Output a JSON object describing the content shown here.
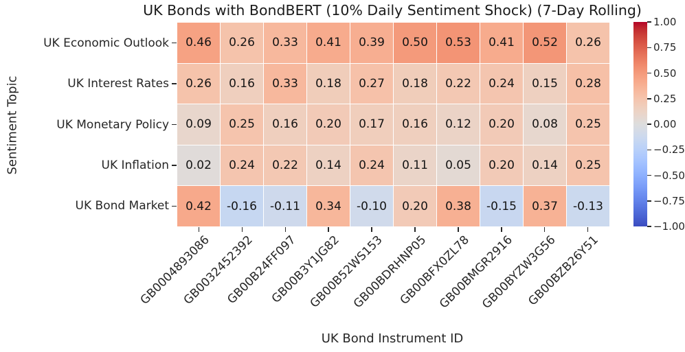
{
  "chart_data": {
    "type": "heatmap",
    "title": "UK Bonds with BondBERT (10% Daily Sentiment Shock) (7-Day Rolling)",
    "xlabel": "UK Bond Instrument ID",
    "ylabel": "Sentiment Topic",
    "rows": [
      "UK Economic Outlook",
      "UK Interest Rates",
      "UK Monetary Policy",
      "UK Inflation",
      "UK Bond Market"
    ],
    "columns": [
      "GB0004893086",
      "GB0032452392",
      "GB00B24FF097",
      "GB00B3Y1JG82",
      "GB00B52WS153",
      "GB00BDRHNP05",
      "GB00BFX0ZL78",
      "GB00BMGR2916",
      "GB00BYZW3G56",
      "GB00BZB26Y51"
    ],
    "values": [
      [
        0.46,
        0.26,
        0.33,
        0.41,
        0.39,
        0.5,
        0.53,
        0.41,
        0.52,
        0.26
      ],
      [
        0.26,
        0.16,
        0.33,
        0.18,
        0.27,
        0.18,
        0.22,
        0.24,
        0.15,
        0.28
      ],
      [
        0.09,
        0.25,
        0.16,
        0.2,
        0.17,
        0.16,
        0.12,
        0.2,
        0.08,
        0.25
      ],
      [
        0.02,
        0.24,
        0.22,
        0.14,
        0.24,
        0.11,
        0.05,
        0.2,
        0.14,
        0.25
      ],
      [
        0.42,
        -0.16,
        -0.11,
        0.34,
        -0.1,
        0.2,
        0.38,
        -0.15,
        0.37,
        -0.13
      ]
    ],
    "annotation_decimals": 2,
    "vmin": -1.0,
    "vmax": 1.0,
    "grid": false,
    "colormap": "coolwarm",
    "colormap_stops": [
      "#3b4cc0",
      "#445acc",
      "#4d68d7",
      "#5775e1",
      "#6282ea",
      "#6c8ef1",
      "#779af7",
      "#82a5fb",
      "#8db0fe",
      "#98b9ff",
      "#a3c2ff",
      "#aec9fd",
      "#b8d0f9",
      "#c2d5f4",
      "#ccd9ee",
      "#d5dbe6",
      "#dddddd",
      "#e5d8d1",
      "#ecd3c5",
      "#f1ccb9",
      "#f5c4ad",
      "#f7bba0",
      "#f7b194",
      "#f7a687",
      "#f49a7b",
      "#f18d6f",
      "#ec7f63",
      "#e57058",
      "#de604d",
      "#d55042",
      "#cb3e38",
      "#c0282f",
      "#b40426"
    ],
    "colorbar": {
      "position": "right",
      "tick_values": [
        1.0,
        0.75,
        0.5,
        0.25,
        0.0,
        -0.25,
        -0.5,
        -0.75,
        -1.0
      ],
      "tick_labels": [
        "1.00",
        "0.75",
        "0.50",
        "0.25",
        "0.00",
        "−0.25",
        "−0.50",
        "−0.75",
        "−1.00"
      ]
    }
  },
  "colors": {
    "background": "#ffffff",
    "text": "#262626",
    "annotation_text": "#151515",
    "cell_gridline": "#ffffff"
  }
}
